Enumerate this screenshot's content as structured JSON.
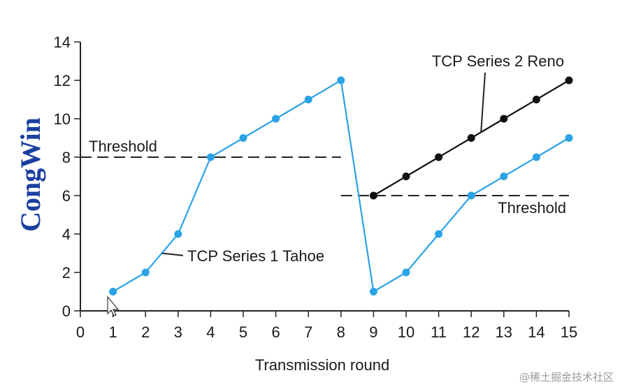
{
  "chart_data": {
    "type": "line",
    "xlabel": "Transmission round",
    "ylabel": "CongWin",
    "xlim": [
      0,
      15
    ],
    "ylim": [
      0,
      14
    ],
    "xticks": [
      0,
      1,
      2,
      3,
      4,
      5,
      6,
      7,
      8,
      9,
      10,
      11,
      12,
      13,
      14,
      15
    ],
    "yticks": [
      0,
      2,
      4,
      6,
      8,
      10,
      12,
      14
    ],
    "grid": false,
    "series": [
      {
        "name": "TCP Series 1 Tahoe",
        "color": "#2ba3e6",
        "x": [
          1,
          2,
          3,
          4,
          5,
          6,
          7,
          8,
          9,
          10,
          11,
          12,
          13,
          14,
          15
        ],
        "y": [
          1,
          2,
          4,
          8,
          9,
          10,
          11,
          12,
          1,
          2,
          4,
          6,
          7,
          8,
          9
        ]
      },
      {
        "name": "TCP Series 2 Reno",
        "color": "#111111",
        "x": [
          9,
          10,
          11,
          12,
          13,
          14,
          15
        ],
        "y": [
          6,
          7,
          8,
          9,
          10,
          11,
          12
        ]
      }
    ],
    "thresholds": [
      {
        "label": "Threshold",
        "value": 8,
        "x_from": 0,
        "x_to": 8
      },
      {
        "label": "Threshold",
        "value": 6,
        "x_from": 8,
        "x_to": 15
      }
    ]
  },
  "watermark": "@稀土掘金技术社区"
}
